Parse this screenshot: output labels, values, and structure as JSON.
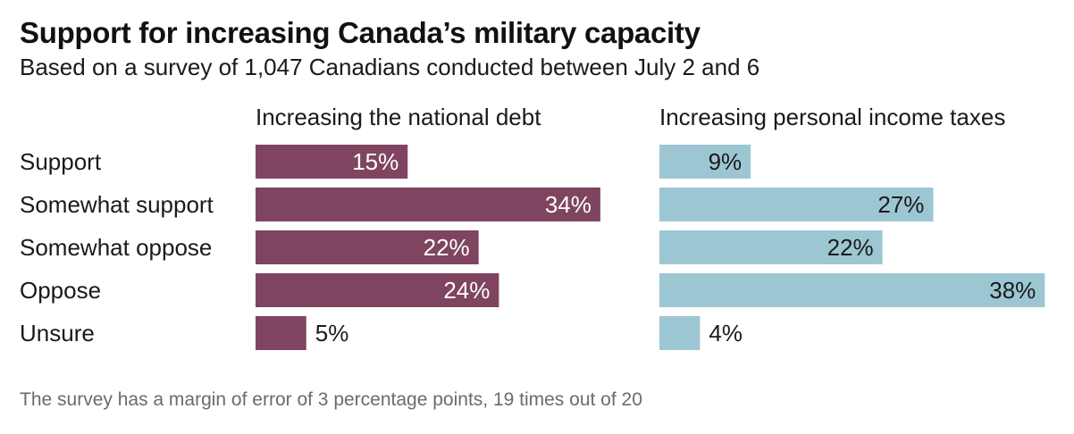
{
  "title": "Support for increasing Canada’s military capacity",
  "subtitle": "Based on a survey of 1,047 Canadians conducted between July 2 and 6",
  "footnote": "The survey has a margin of error of 3 percentage points, 19 times out of 20",
  "chart_data": {
    "type": "bar",
    "orientation": "horizontal",
    "categories": [
      "Support",
      "Somewhat support",
      "Somewhat oppose",
      "Oppose",
      "Unsure"
    ],
    "unit": "%",
    "panels": [
      {
        "title": "Increasing the national debt",
        "color": "#7f4560",
        "label_inside_color": "#ffffff",
        "values": [
          15,
          34,
          22,
          24,
          5
        ],
        "value_labels": [
          "15%",
          "34%",
          "22%",
          "24%",
          "5%"
        ]
      },
      {
        "title": "Increasing personal income taxes",
        "color": "#9dc6d3",
        "label_inside_color": "#1a1a1a",
        "values": [
          9,
          27,
          22,
          38,
          4
        ],
        "value_labels": [
          "9%",
          "27%",
          "22%",
          "38%",
          "4%"
        ]
      }
    ],
    "grid": false,
    "legend": "none"
  }
}
